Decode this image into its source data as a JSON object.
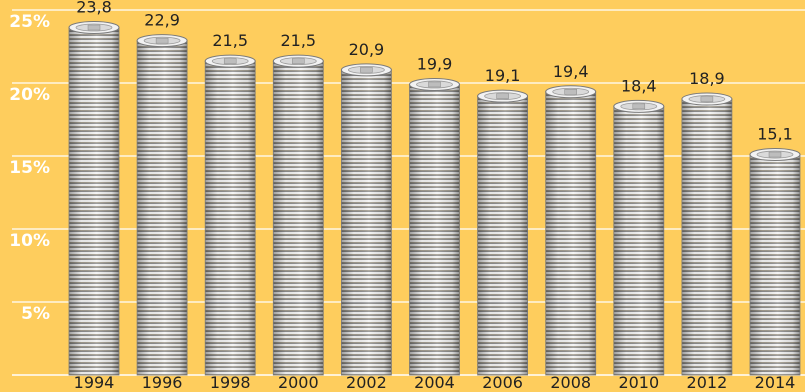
{
  "chart_data": {
    "type": "bar",
    "categories": [
      "1994",
      "1996",
      "1998",
      "2000",
      "2002",
      "2004",
      "2006",
      "2008",
      "2010",
      "2012",
      "2014"
    ],
    "values": [
      23.8,
      22.9,
      21.5,
      21.5,
      20.9,
      19.9,
      19.1,
      19.4,
      18.4,
      18.9,
      15.1
    ],
    "data_labels": [
      "23,8",
      "22,9",
      "21,5",
      "21,5",
      "20,9",
      "19,9",
      "19,1",
      "19,4",
      "18,4",
      "18,9",
      "15,1"
    ],
    "ylim": [
      0,
      25
    ],
    "yticks": [
      5,
      10,
      15,
      20,
      25
    ],
    "ytick_labels": [
      "5%",
      "10%",
      "15%",
      "20%",
      "25%"
    ],
    "grid": true,
    "bar_style": "stacked-coins",
    "colors": {
      "background": "#fecd5d",
      "gridline": "#ffffff",
      "ytick_label": "#ffffff",
      "coin_edge": "#8e8e8e",
      "coin_face": "#f2f2f2",
      "text": "#222222"
    }
  }
}
